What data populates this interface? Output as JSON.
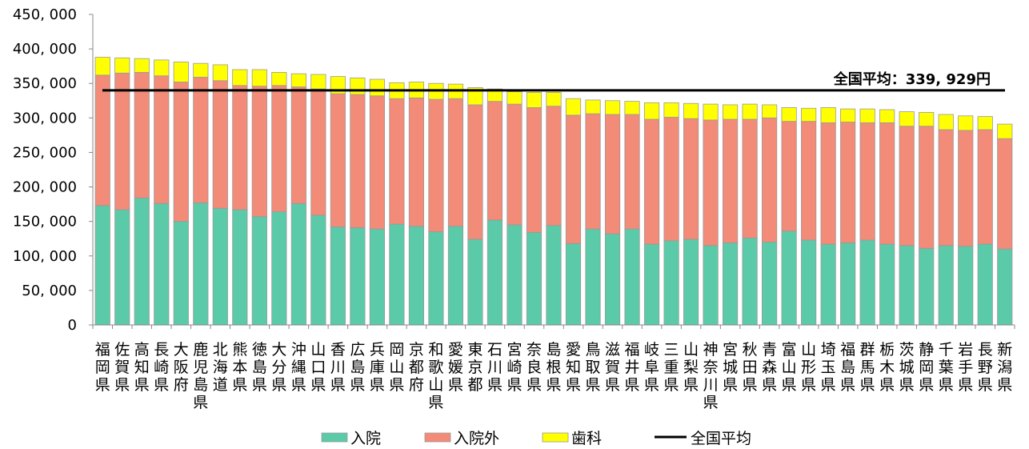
{
  "chart_data": {
    "type": "bar",
    "stacked": true,
    "title": "",
    "xlabel": "",
    "ylabel": "",
    "ylim": [
      0,
      450000
    ],
    "y_ticks": [
      "0",
      "50, 000",
      "100, 000",
      "150, 000",
      "200, 000",
      "250, 000",
      "300, 000",
      "350, 000",
      "400, 000",
      "450, 000"
    ],
    "grid": false,
    "legend_position": "bottom",
    "categories": [
      "福岡県",
      "佐賀県",
      "高知県",
      "長崎県",
      "大阪府",
      "鹿児島県",
      "北海道",
      "熊本県",
      "徳島県",
      "大分県",
      "沖縄県",
      "山口県",
      "香川県",
      "広島県",
      "兵庫県",
      "岡山県",
      "京都府",
      "和歌山県",
      "愛媛県",
      "東京都",
      "石川県",
      "宮崎県",
      "奈良県",
      "島根県",
      "愛知県",
      "鳥取県",
      "滋賀県",
      "福井県",
      "岐阜県",
      "三重県",
      "山梨県",
      "神奈川県",
      "宮城県",
      "秋田県",
      "青森県",
      "富山県",
      "山形県",
      "埼玉県",
      "福島県",
      "群馬県",
      "栃木県",
      "茨城県",
      "静岡県",
      "千葉県",
      "岩手県",
      "長野県",
      "新潟県"
    ],
    "series": [
      {
        "name": "入院",
        "color": "#5bcaa8",
        "values": [
          173000,
          167000,
          184000,
          176000,
          150000,
          177000,
          169000,
          167000,
          157000,
          164000,
          176000,
          159000,
          142000,
          141000,
          139000,
          146000,
          143000,
          135000,
          143000,
          124000,
          152000,
          145000,
          134000,
          144000,
          118000,
          139000,
          132000,
          139000,
          117000,
          122000,
          124000,
          115000,
          119000,
          126000,
          120000,
          136000,
          123000,
          117000,
          119000,
          123000,
          117000,
          115000,
          111000,
          115000,
          114000,
          117000,
          110000
        ]
      },
      {
        "name": "入院外",
        "color": "#f28b78",
        "values": [
          189000,
          198000,
          182000,
          185000,
          202000,
          182000,
          185000,
          180000,
          189000,
          183000,
          169000,
          183000,
          193000,
          193000,
          193000,
          182000,
          186000,
          192000,
          185000,
          195000,
          172000,
          175000,
          181000,
          173000,
          186000,
          167000,
          173000,
          166000,
          181000,
          179000,
          175000,
          182000,
          179000,
          172000,
          180000,
          159000,
          172000,
          176000,
          175000,
          170000,
          176000,
          173000,
          177000,
          168000,
          168000,
          166000,
          160000
        ]
      },
      {
        "name": "歯科",
        "color": "#ffff00",
        "values": [
          26000,
          22000,
          20000,
          23000,
          29000,
          20000,
          23000,
          23000,
          24000,
          19000,
          19000,
          21000,
          25000,
          24000,
          24000,
          23000,
          23000,
          23000,
          21000,
          25000,
          18000,
          18000,
          22000,
          20000,
          24000,
          20000,
          20000,
          19000,
          24000,
          21000,
          22000,
          23000,
          21000,
          22000,
          19000,
          20000,
          19000,
          22000,
          19000,
          20000,
          19000,
          21000,
          20000,
          22000,
          21000,
          19000,
          21000
        ]
      }
    ],
    "reference_line": {
      "name": "全国平均",
      "value": 339929,
      "label": "全国平均：339, 929円",
      "color": "#000000"
    }
  }
}
